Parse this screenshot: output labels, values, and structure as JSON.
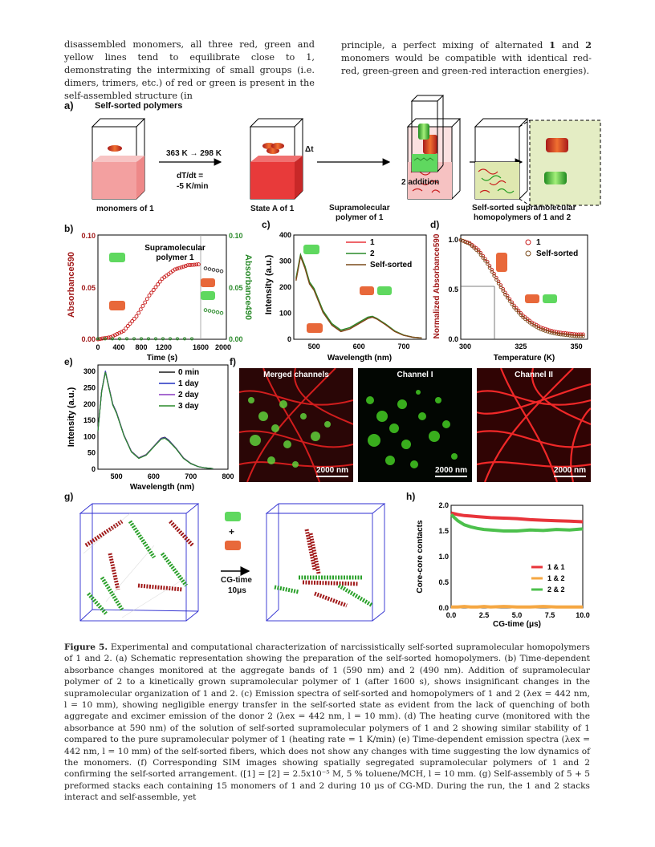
{
  "intro_left": "disassembled monomers, all three red, green and yellow lines tend to equilibrate close to 1, demonstrating the intermixing of small groups (i.e. dimers, trimers, etc.) of red or green is present in the self-assembled structure (in",
  "intro_right_a": "principle, a perfect mixing of alternated ",
  "intro_right_b": "1",
  "intro_right_c": " and ",
  "intro_right_d": "2",
  "intro_right_e": " monomers would be compatible with identical red-red, green-green and green-red interaction energies).",
  "panel_a": {
    "letter": "a)",
    "title": "Self-sorted polymers",
    "step1": "363 K → 298 K",
    "rate_line1": "dT/dt =",
    "rate_line2": "-5 K/min",
    "delta_t": "Δt",
    "addition": "2 addition",
    "label_monomers": "monomers  of 1",
    "label_stateA": "State A of 1",
    "label_supra1": "Supramolecular",
    "label_supra2": "polymer  of 1",
    "label_sorted1": "Self-sorted supramolecular",
    "label_sorted2": "homopolymers of 1 and 2"
  },
  "panel_b": {
    "letter": "b)",
    "ylabel_left": "Absorbance590",
    "ylabel_right": "Absorbance490",
    "xlabel": "Time (s)",
    "annotation1": "Supramolecular",
    "annotation2": "polymer 1",
    "yticks_left": [
      "0.10",
      "0.05",
      "0.00"
    ],
    "yticks_right": [
      "0.10",
      "0.05",
      "0.00"
    ],
    "xticks": [
      "0",
      "400",
      "800",
      "1200",
      "1600",
      "2000"
    ]
  },
  "panel_c": {
    "letter": "c)",
    "ylabel": "Intensity (a.u.)",
    "xlabel": "Wavelength (nm)",
    "yticks": [
      "400",
      "300",
      "200",
      "100",
      "0"
    ],
    "xticks": [
      "500",
      "600",
      "700"
    ],
    "legend": [
      "1",
      "2",
      "Self-sorted"
    ]
  },
  "panel_d": {
    "letter": "d)",
    "ylabel": "Normalized Absorbance590",
    "xlabel": "Temperature (K)",
    "yticks": [
      "1.0",
      "0.5",
      "0.0"
    ],
    "xticks": [
      "300",
      "325",
      "350"
    ],
    "legend": [
      "1",
      "Self-sorted"
    ]
  },
  "panel_e": {
    "letter": "e)",
    "ylabel": "Intensity (a.u.)",
    "xlabel": "Wavelength (nm)",
    "yticks": [
      "300",
      "250",
      "200",
      "150",
      "100",
      "50",
      "0"
    ],
    "xticks": [
      "500",
      "600",
      "700",
      "800"
    ],
    "legend": [
      "0 min",
      "1 day",
      "2 day",
      "3 day"
    ]
  },
  "panel_f": {
    "letter": "f)",
    "titles": [
      "Merged channels",
      "Channel I",
      "Channel II"
    ],
    "scale": "2000 nm"
  },
  "panel_g": {
    "letter": "g)",
    "plus": "+",
    "time_label1": "CG-time",
    "time_label2": "10μs"
  },
  "panel_h": {
    "letter": "h)",
    "ylabel": "Core-core contacts",
    "xlabel": "CG-time (μs)",
    "yticks": [
      "2.0",
      "1.5",
      "1.0",
      "0.5",
      "0.0"
    ],
    "xticks": [
      "0.0",
      "2.5",
      "5.0",
      "7.5",
      "10.0"
    ],
    "legend": [
      "1 & 1",
      "1 & 2",
      "2 & 2"
    ],
    "colors": [
      "#e8343a",
      "#f5a742",
      "#4cc04c"
    ]
  },
  "chart_data": [
    {
      "type": "line",
      "panel": "c",
      "xlabel": "Wavelength (nm)",
      "ylabel": "Intensity (a.u.)",
      "xlim": [
        455,
        750
      ],
      "ylim": [
        0,
        400
      ],
      "x": [
        460,
        470,
        480,
        490,
        500,
        520,
        540,
        560,
        580,
        600,
        620,
        630,
        640,
        660,
        680,
        700,
        720,
        740
      ],
      "series": [
        {
          "name": "1",
          "values": [
            230,
            320,
            275,
            215,
            190,
            105,
            55,
            30,
            40,
            60,
            80,
            85,
            78,
            55,
            30,
            15,
            8,
            5
          ]
        },
        {
          "name": "2",
          "values": [
            235,
            325,
            280,
            220,
            195,
            110,
            60,
            35,
            45,
            65,
            85,
            88,
            80,
            58,
            32,
            16,
            8,
            5
          ]
        },
        {
          "name": "Self-sorted",
          "values": [
            225,
            318,
            272,
            212,
            188,
            103,
            54,
            30,
            40,
            60,
            80,
            85,
            78,
            55,
            30,
            15,
            8,
            5
          ]
        }
      ]
    },
    {
      "type": "line",
      "panel": "e",
      "xlabel": "Wavelength (nm)",
      "ylabel": "Intensity (a.u.)",
      "xlim": [
        450,
        800
      ],
      "ylim": [
        0,
        320
      ],
      "x": [
        450,
        460,
        470,
        480,
        490,
        500,
        520,
        540,
        560,
        580,
        600,
        620,
        630,
        640,
        660,
        680,
        700,
        720,
        740,
        760
      ],
      "series": [
        {
          "name": "0 min",
          "values": [
            120,
            240,
            300,
            250,
            200,
            175,
            105,
            55,
            35,
            45,
            70,
            95,
            98,
            90,
            65,
            35,
            18,
            8,
            4,
            2
          ]
        },
        {
          "name": "1 day",
          "values": [
            118,
            238,
            302,
            248,
            199,
            174,
            104,
            54,
            34,
            44,
            69,
            94,
            97,
            89,
            64,
            34,
            17,
            8,
            4,
            2
          ]
        },
        {
          "name": "2 day",
          "values": [
            119,
            239,
            299,
            249,
            198,
            173,
            104,
            54,
            34,
            44,
            69,
            93,
            96,
            88,
            64,
            34,
            17,
            8,
            4,
            2
          ]
        },
        {
          "name": "3 day",
          "values": [
            117,
            237,
            298,
            247,
            197,
            172,
            103,
            53,
            33,
            43,
            68,
            92,
            95,
            87,
            63,
            33,
            17,
            8,
            4,
            2
          ]
        }
      ]
    },
    {
      "type": "line",
      "panel": "h",
      "xlabel": "CG-time (μs)",
      "ylabel": "Core-core contacts",
      "xlim": [
        0,
        10
      ],
      "ylim": [
        0,
        2.0
      ],
      "x": [
        0,
        0.5,
        1,
        1.5,
        2,
        2.5,
        3,
        4,
        5,
        6,
        7,
        8,
        9,
        10
      ],
      "series": [
        {
          "name": "1 & 1",
          "values": [
            1.85,
            1.82,
            1.8,
            1.79,
            1.78,
            1.77,
            1.76,
            1.75,
            1.74,
            1.72,
            1.71,
            1.7,
            1.69,
            1.68
          ]
        },
        {
          "name": "1 & 2",
          "values": [
            0.02,
            0.02,
            0.03,
            0.02,
            0.02,
            0.03,
            0.02,
            0.03,
            0.02,
            0.02,
            0.03,
            0.02,
            0.02,
            0.02
          ]
        },
        {
          "name": "2 & 2",
          "values": [
            1.82,
            1.7,
            1.62,
            1.58,
            1.55,
            1.53,
            1.52,
            1.5,
            1.5,
            1.52,
            1.51,
            1.53,
            1.52,
            1.54
          ]
        }
      ]
    },
    {
      "type": "scatter",
      "panel": "b",
      "xlabel": "Time (s)",
      "ylabel": "Absorbance590",
      "xlim": [
        0,
        2000
      ],
      "ylim": [
        0,
        0.1
      ],
      "x": [
        0,
        200,
        400,
        600,
        800,
        1000,
        1200,
        1400,
        1600
      ],
      "series": [
        {
          "name": "",
          "values": [
            0.0,
            0.002,
            0.008,
            0.022,
            0.042,
            0.058,
            0.067,
            0.071,
            0.072
          ]
        }
      ]
    },
    {
      "type": "scatter",
      "panel": "d",
      "xlabel": "Temperature (K)",
      "ylabel": "Normalized Absorbance590",
      "xlim": [
        298,
        355
      ],
      "ylim": [
        0,
        1.05
      ],
      "x": [
        298,
        302,
        306,
        310,
        314,
        318,
        322,
        326,
        330,
        334,
        338,
        342,
        346,
        350,
        354
      ],
      "series": [
        {
          "name": "1",
          "values": [
            1.0,
            0.97,
            0.9,
            0.78,
            0.62,
            0.47,
            0.34,
            0.24,
            0.17,
            0.12,
            0.09,
            0.07,
            0.06,
            0.05,
            0.05
          ]
        },
        {
          "name": "Self-sorted",
          "values": [
            1.0,
            0.96,
            0.88,
            0.76,
            0.6,
            0.45,
            0.32,
            0.22,
            0.15,
            0.1,
            0.07,
            0.05,
            0.04,
            0.03,
            0.03
          ]
        }
      ]
    }
  ],
  "caption": {
    "fig": "Figure 5.",
    "text": " Experimental and computational characterization of narcissistically self-sorted supramolecular homopolymers of 1 and 2. (a) Schematic representation showing the preparation of the self-sorted homopolymers. (b) Time-dependent absorbance changes monitored at the aggregate bands of 1 (590 nm) and 2 (490 nm). Addition of supramolecular polymer of 2 to a kinetically grown supramolecular polymer of 1 (after 1600 s), shows insignificant changes in the supramolecular organization of 1 and 2. (c) Emission spectra of self-sorted and homopolymers of 1 and 2 (λex = 442 nm, l = 10 mm), showing negligible energy transfer in the self-sorted state as evident from the lack of quenching of both aggregate and excimer emission of the donor 2 (λex = 442 nm, l = 10 mm). (d) The heating curve (monitored with the absorbance at 590 nm) of the solution of self-sorted supramolecular polymers of 1 and 2 showing similar stability of 1 compared to the pure supramolecular polymer of 1 (heating rate = 1 K/min) (e) Time-dependent emission spectra (λex = 442 nm, l = 10 mm) of the self-sorted fibers, which does not show any changes with time suggesting the low dynamics of the monomers. (f) Corresponding SIM images showing spatially segregated supramolecular polymers of 1 and 2 confirming the self-sorted arrangement. ([1] = [2] = 2.5x10⁻⁵ M, 5 % toluene/MCH, l = 10 mm. (g) Self-assembly of 5 + 5 preformed stacks each containing 15 monomers of 1 and 2 during 10 μs of CG-MD. During the run, the 1 and 2 stacks interact and self-assemble, yet"
  }
}
